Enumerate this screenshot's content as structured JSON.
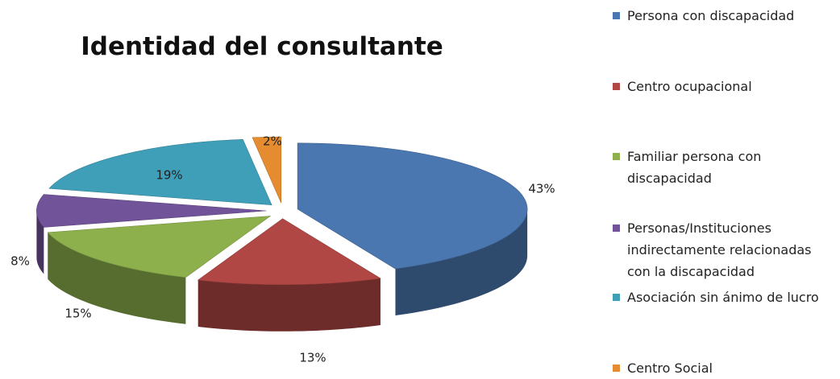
{
  "chart_data": {
    "type": "pie3d",
    "title": "Identidad del consultante",
    "categories": [
      "Persona con discapacidad",
      "Centro ocupacional",
      "Familiar persona con discapacidad",
      "Personas/Instituciones indirectamente relacionadas con la discapacidad",
      "Asociación sin ánimo de lucro",
      "Centro Social"
    ],
    "values": [
      43,
      13,
      15,
      8,
      19,
      2
    ],
    "value_labels": [
      "43%",
      "13%",
      "15%",
      "8%",
      "19%",
      "2%"
    ],
    "colors": [
      "#4a77b0",
      "#b04744",
      "#8db04c",
      "#71539a",
      "#3f9fb8",
      "#e58c30"
    ],
    "legend": "right"
  }
}
